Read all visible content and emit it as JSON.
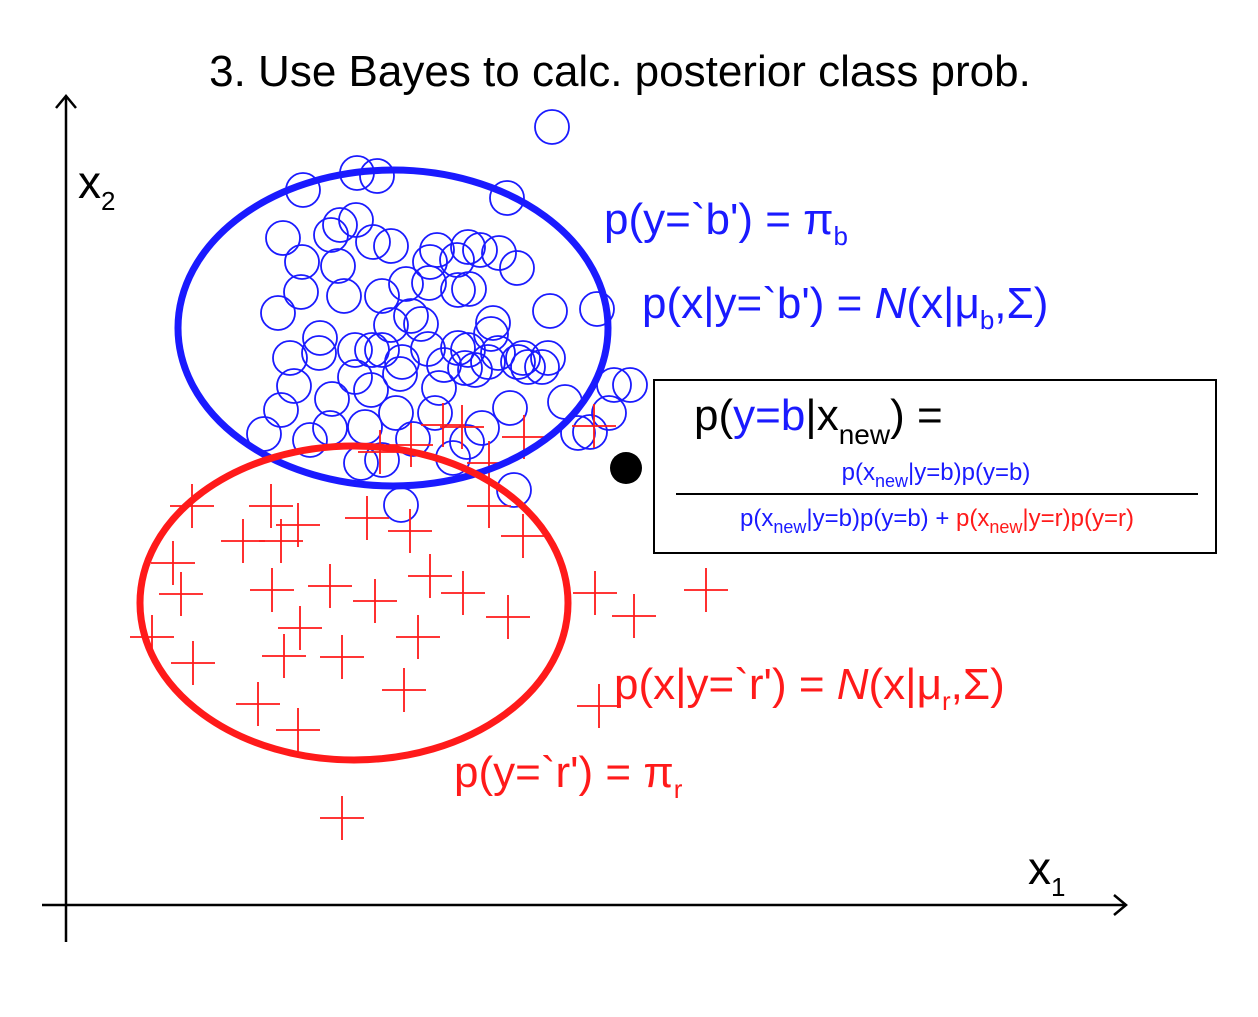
{
  "title": "3. Use Bayes to calc. posterior class prob.",
  "axes": {
    "x_label": "x",
    "x_sub": "1",
    "y_label": "x",
    "y_sub": "2"
  },
  "colors": {
    "blue": "#1a1aff",
    "red": "#ff1a1a",
    "black": "#000000"
  },
  "blue_prior": {
    "lhs": "p(y=`b') = ",
    "pi": "π",
    "sub": "b"
  },
  "blue_likelihood": {
    "lhs": "p(x|y=`b') = ",
    "N": "N",
    "args_open": "(x|",
    "mu": "μ",
    "mu_sub": "b",
    "args_close": ",Σ)"
  },
  "red_likelihood": {
    "lhs": "p(x|y=`r') = ",
    "N": "N",
    "args_open": "(x|",
    "mu": "μ",
    "mu_sub": "r",
    "args_close": ",Σ)"
  },
  "red_prior": {
    "lhs": "p(y=`r') = ",
    "pi": "π",
    "sub": "r"
  },
  "posterior": {
    "lhs_p": "p(",
    "lhs_y": "y=b",
    "lhs_bar": "|x",
    "lhs_sub": "new",
    "lhs_close": ") =",
    "num_a": "p(x",
    "num_sub": "new",
    "num_b": "|y=b)p(y=b)",
    "den_b1": "p(x",
    "den_b_sub": "new",
    "den_b2": "|y=b)p(y=b) + ",
    "den_r1": "p(x",
    "den_r_sub": "new",
    "den_r2": "|y=r)p(y=r)"
  },
  "blue_points": [
    [
      552,
      127
    ],
    [
      357,
      173
    ],
    [
      303,
      190
    ],
    [
      377,
      176
    ],
    [
      507,
      198
    ],
    [
      340,
      225
    ],
    [
      356,
      220
    ],
    [
      283,
      238
    ],
    [
      331,
      235
    ],
    [
      391,
      246
    ],
    [
      373,
      242
    ],
    [
      437,
      250
    ],
    [
      468,
      247
    ],
    [
      480,
      250
    ],
    [
      457,
      260
    ],
    [
      499,
      253
    ],
    [
      302,
      262
    ],
    [
      338,
      266
    ],
    [
      430,
      262
    ],
    [
      517,
      268
    ],
    [
      406,
      284
    ],
    [
      429,
      283
    ],
    [
      458,
      290
    ],
    [
      301,
      292
    ],
    [
      344,
      296
    ],
    [
      382,
      296
    ],
    [
      469,
      289
    ],
    [
      550,
      311
    ],
    [
      597,
      309
    ],
    [
      278,
      313
    ],
    [
      411,
      316
    ],
    [
      493,
      323
    ],
    [
      320,
      338
    ],
    [
      391,
      325
    ],
    [
      421,
      324
    ],
    [
      491,
      334
    ],
    [
      355,
      350
    ],
    [
      372,
      350
    ],
    [
      382,
      350
    ],
    [
      428,
      349
    ],
    [
      458,
      348
    ],
    [
      468,
      350
    ],
    [
      498,
      353
    ],
    [
      518,
      362
    ],
    [
      548,
      358
    ],
    [
      290,
      358
    ],
    [
      319,
      353
    ],
    [
      402,
      362
    ],
    [
      444,
      365
    ],
    [
      465,
      368
    ],
    [
      475,
      370
    ],
    [
      488,
      362
    ],
    [
      528,
      367
    ],
    [
      523,
      358
    ],
    [
      542,
      367
    ],
    [
      355,
      377
    ],
    [
      400,
      374
    ],
    [
      614,
      385
    ],
    [
      630,
      385
    ],
    [
      294,
      386
    ],
    [
      332,
      399
    ],
    [
      371,
      390
    ],
    [
      439,
      388
    ],
    [
      510,
      408
    ],
    [
      565,
      402
    ],
    [
      281,
      410
    ],
    [
      396,
      413
    ],
    [
      435,
      413
    ],
    [
      330,
      428
    ],
    [
      365,
      427
    ],
    [
      482,
      428
    ],
    [
      264,
      434
    ],
    [
      310,
      440
    ],
    [
      413,
      439
    ],
    [
      467,
      442
    ],
    [
      578,
      433
    ],
    [
      590,
      432
    ],
    [
      609,
      413
    ],
    [
      361,
      463
    ],
    [
      382,
      460
    ],
    [
      453,
      458
    ],
    [
      514,
      490
    ],
    [
      401,
      505
    ]
  ],
  "red_points": [
    [
      443,
      425
    ],
    [
      594,
      426
    ],
    [
      524,
      437
    ],
    [
      462,
      427
    ],
    [
      380,
      452
    ],
    [
      411,
      445
    ],
    [
      489,
      463
    ],
    [
      192,
      506
    ],
    [
      271,
      506
    ],
    [
      298,
      525
    ],
    [
      367,
      518
    ],
    [
      489,
      506
    ],
    [
      410,
      531
    ],
    [
      523,
      536
    ],
    [
      243,
      541
    ],
    [
      173,
      563
    ],
    [
      281,
      541
    ],
    [
      181,
      594
    ],
    [
      272,
      590
    ],
    [
      330,
      586
    ],
    [
      375,
      601
    ],
    [
      430,
      576
    ],
    [
      463,
      593
    ],
    [
      508,
      617
    ],
    [
      595,
      593
    ],
    [
      634,
      616
    ],
    [
      706,
      590
    ],
    [
      300,
      628
    ],
    [
      152,
      637
    ],
    [
      342,
      657
    ],
    [
      418,
      637
    ],
    [
      284,
      656
    ],
    [
      193,
      663
    ],
    [
      404,
      690
    ],
    [
      258,
      704
    ],
    [
      298,
      730
    ],
    [
      599,
      706
    ],
    [
      342,
      818
    ]
  ],
  "new_point": [
    626,
    468
  ]
}
